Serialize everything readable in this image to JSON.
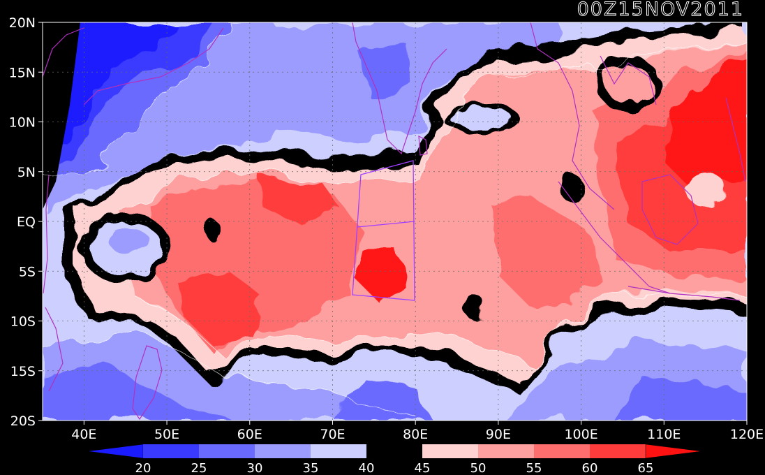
{
  "title": "00Z15NOV2011",
  "axes": {
    "lon_range": [
      35,
      120
    ],
    "lat_range": [
      -20,
      20
    ],
    "x_ticks": [
      {
        "value": 40,
        "label": "40E"
      },
      {
        "value": 50,
        "label": "50E"
      },
      {
        "value": 60,
        "label": "60E"
      },
      {
        "value": 70,
        "label": "70E"
      },
      {
        "value": 80,
        "label": "80E"
      },
      {
        "value": 90,
        "label": "90E"
      },
      {
        "value": 100,
        "label": "100E"
      },
      {
        "value": 110,
        "label": "110E"
      },
      {
        "value": 120,
        "label": "120E"
      }
    ],
    "y_ticks": [
      {
        "value": 20,
        "label": "20N"
      },
      {
        "value": 15,
        "label": "15N"
      },
      {
        "value": 10,
        "label": "10N"
      },
      {
        "value": 5,
        "label": "5N"
      },
      {
        "value": 0,
        "label": "EQ"
      },
      {
        "value": -5,
        "label": "5S"
      },
      {
        "value": -10,
        "label": "10S"
      },
      {
        "value": -15,
        "label": "15S"
      },
      {
        "value": -20,
        "label": "20S"
      }
    ],
    "grid": true
  },
  "colors": {
    "background": "#000000",
    "coast": "#b030c0",
    "box": "#a040ff",
    "grid": "#6a6a6a"
  },
  "colorbar": {
    "levels": [
      "20",
      "25",
      "30",
      "35",
      "40",
      "45",
      "50",
      "55",
      "60",
      "65"
    ],
    "colors": [
      "#1b1bff",
      "#3a3aff",
      "#6a6aff",
      "#9c9cff",
      "#cdd0ff",
      "#000000",
      "#ffd2d2",
      "#ffa0a0",
      "#ff6e6e",
      "#ff3c3c",
      "#ff1212"
    ]
  }
}
